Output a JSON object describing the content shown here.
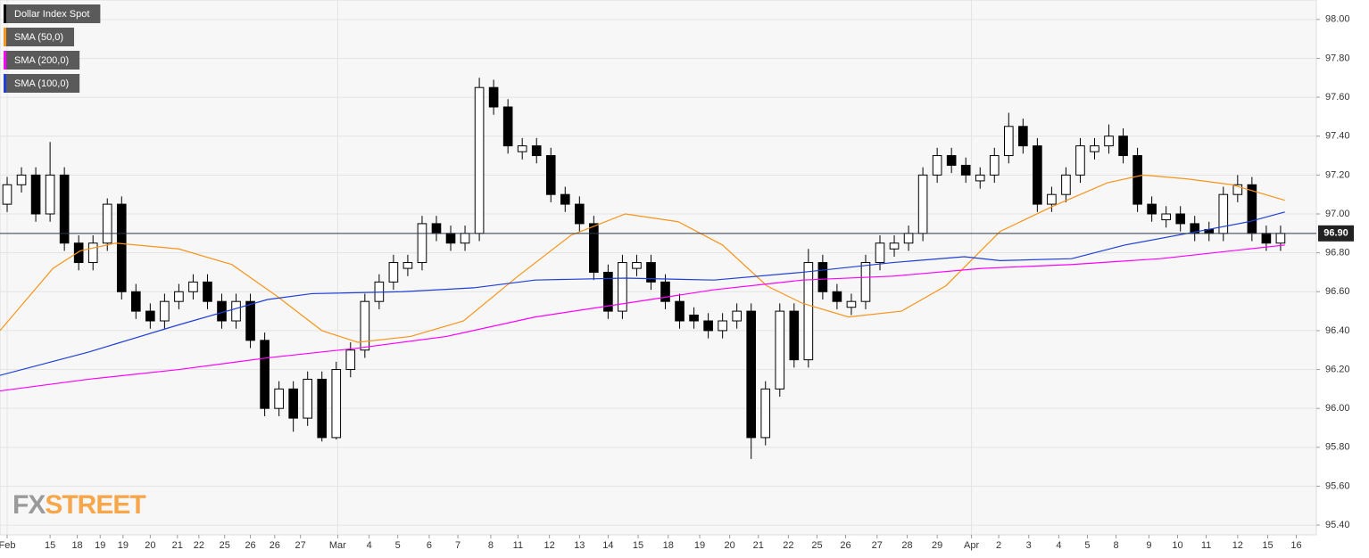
{
  "chart_data": {
    "type": "candlestick",
    "name": "Dollar Index Spot",
    "color": "#000000",
    "up_color": "#ffffff",
    "down_color": "#000000",
    "open": [
      97.05,
      97.15,
      97.2,
      97.0,
      97.2,
      96.85,
      96.75,
      96.85,
      97.05,
      96.6,
      96.5,
      96.45,
      96.55,
      96.6,
      96.65,
      96.55,
      96.45,
      96.55,
      96.35,
      96.0,
      96.1,
      95.95,
      96.15,
      95.85,
      96.2,
      96.3,
      96.55,
      96.65,
      96.72,
      96.75,
      96.95,
      96.9,
      96.85,
      96.9,
      97.65,
      97.55,
      97.32,
      97.35,
      97.3,
      97.1,
      97.05,
      96.95,
      96.7,
      96.5,
      96.72,
      96.75,
      96.65,
      96.55,
      96.48,
      96.45,
      96.4,
      96.45,
      96.5,
      95.85,
      96.1,
      96.5,
      96.25,
      96.75,
      96.6,
      96.52,
      96.55,
      96.75,
      96.82,
      96.85,
      96.9,
      97.2,
      97.3,
      97.25,
      97.17,
      97.2,
      97.3,
      97.45,
      97.35,
      97.05,
      97.1,
      97.2,
      97.32,
      97.35,
      97.4,
      97.3,
      97.05,
      96.97,
      97.0,
      96.95,
      96.92,
      96.9,
      97.1,
      97.15,
      96.9,
      96.85
    ],
    "high": [
      97.19,
      97.24,
      97.24,
      97.37,
      97.24,
      96.89,
      96.89,
      97.08,
      97.09,
      96.64,
      96.54,
      96.59,
      96.64,
      96.69,
      96.69,
      96.59,
      96.59,
      96.59,
      96.39,
      96.14,
      96.14,
      96.19,
      96.19,
      96.24,
      96.34,
      96.59,
      96.69,
      96.79,
      96.79,
      96.99,
      96.99,
      96.94,
      96.94,
      97.7,
      97.69,
      97.59,
      97.39,
      97.39,
      97.34,
      97.14,
      97.09,
      96.99,
      96.74,
      96.79,
      96.79,
      96.79,
      96.69,
      96.59,
      96.52,
      96.49,
      96.49,
      96.54,
      96.54,
      96.14,
      96.54,
      96.54,
      96.82,
      96.79,
      96.64,
      96.59,
      96.79,
      96.89,
      96.89,
      96.94,
      97.24,
      97.34,
      97.34,
      97.29,
      97.24,
      97.34,
      97.52,
      97.49,
      97.39,
      97.14,
      97.24,
      97.39,
      97.39,
      97.46,
      97.44,
      97.34,
      97.09,
      97.04,
      97.04,
      96.99,
      96.96,
      97.14,
      97.2,
      97.19,
      96.94,
      96.94
    ],
    "low": [
      97.01,
      97.11,
      96.96,
      96.96,
      96.81,
      96.71,
      96.71,
      96.81,
      96.56,
      96.46,
      96.41,
      96.41,
      96.51,
      96.56,
      96.51,
      96.41,
      96.41,
      96.31,
      95.96,
      95.96,
      95.88,
      95.91,
      95.83,
      95.84,
      96.16,
      96.26,
      96.51,
      96.61,
      96.68,
      96.71,
      96.86,
      96.81,
      96.81,
      96.86,
      97.51,
      97.31,
      97.28,
      97.26,
      97.06,
      97.01,
      96.91,
      96.66,
      96.46,
      96.46,
      96.68,
      96.61,
      96.51,
      96.41,
      96.41,
      96.36,
      96.36,
      96.41,
      95.74,
      95.81,
      96.06,
      96.21,
      96.21,
      96.56,
      96.51,
      96.48,
      96.51,
      96.71,
      96.78,
      96.81,
      96.86,
      97.16,
      97.21,
      97.16,
      97.13,
      97.16,
      97.26,
      97.31,
      97.01,
      97.01,
      97.06,
      97.16,
      97.28,
      97.31,
      97.26,
      97.01,
      96.96,
      96.93,
      96.91,
      96.86,
      96.86,
      96.86,
      97.06,
      96.86,
      96.81,
      96.81
    ],
    "close": [
      97.15,
      97.2,
      97.0,
      97.2,
      96.85,
      96.75,
      96.85,
      97.05,
      96.6,
      96.5,
      96.45,
      96.55,
      96.6,
      96.65,
      96.55,
      96.45,
      96.55,
      96.35,
      96.0,
      96.1,
      95.95,
      96.15,
      95.85,
      96.2,
      96.3,
      96.55,
      96.65,
      96.75,
      96.75,
      96.95,
      96.9,
      96.85,
      96.9,
      97.65,
      97.55,
      97.35,
      97.35,
      97.3,
      97.1,
      97.05,
      96.95,
      96.7,
      96.5,
      96.75,
      96.75,
      96.65,
      96.55,
      96.45,
      96.45,
      96.4,
      96.45,
      96.5,
      95.85,
      96.1,
      96.5,
      96.25,
      96.75,
      96.6,
      96.55,
      96.55,
      96.75,
      96.85,
      96.85,
      96.9,
      97.2,
      97.3,
      97.25,
      97.2,
      97.2,
      97.3,
      97.45,
      97.35,
      97.05,
      97.1,
      97.2,
      97.35,
      97.35,
      97.4,
      97.3,
      97.05,
      97.0,
      97.0,
      96.95,
      96.9,
      96.9,
      97.1,
      97.15,
      96.9,
      96.85,
      96.9
    ],
    "series": [
      {
        "name": "SMA (50,0)",
        "color": "#f7941d",
        "x": [
          0,
          3.7,
          5.6,
          8.1,
          12.5,
          16.2,
          19.3,
          22.5,
          25,
          28.7,
          32.4,
          36.2,
          39.9,
          43.7,
          47.4,
          50.5,
          53.6,
          56.1,
          59.3,
          63,
          66.1,
          69.9,
          73.6,
          77.4,
          79.9,
          83,
          86.1,
          89.8
        ],
        "values": [
          96.4,
          96.72,
          96.81,
          96.85,
          96.82,
          96.74,
          96.58,
          96.4,
          96.34,
          96.37,
          96.45,
          96.68,
          96.89,
          97.0,
          96.96,
          96.84,
          96.63,
          96.54,
          96.47,
          96.5,
          96.63,
          96.91,
          97.04,
          97.16,
          97.2,
          97.18,
          97.15,
          97.07
        ]
      },
      {
        "name": "SMA (200,0)",
        "color": "#ff00ff",
        "x": [
          0,
          6.2,
          12.5,
          18.7,
          25,
          31.2,
          37.4,
          43.7,
          49.9,
          56.1,
          62.4,
          68.6,
          74.9,
          81.1,
          87.3,
          89.8
        ],
        "values": [
          96.09,
          96.15,
          96.2,
          96.26,
          96.31,
          96.37,
          96.47,
          96.54,
          96.61,
          96.66,
          96.68,
          96.72,
          96.74,
          96.77,
          96.82,
          96.84
        ]
      },
      {
        "name": "SMA (100,0)",
        "color": "#1f3fd6",
        "x": [
          0,
          6.2,
          12.5,
          18.7,
          21.8,
          28.1,
          33.1,
          37.4,
          43.7,
          49.9,
          56.1,
          62.4,
          67.4,
          69.9,
          74.9,
          78.6,
          83,
          87.3,
          89.8
        ],
        "values": [
          96.17,
          96.29,
          96.43,
          96.56,
          96.59,
          96.6,
          96.62,
          96.66,
          96.67,
          96.66,
          96.7,
          96.75,
          96.78,
          96.76,
          96.77,
          96.84,
          96.9,
          96.96,
          97.01
        ]
      }
    ],
    "last_price": {
      "value": 96.9,
      "label": "96.90"
    },
    "xlim": [
      0,
      92
    ],
    "ylim": [
      95.35,
      98.1
    ],
    "yticks": [
      {
        "value": 95.4,
        "label": "95.40"
      },
      {
        "value": 95.6,
        "label": "95.60"
      },
      {
        "value": 95.8,
        "label": "95.80"
      },
      {
        "value": 96.0,
        "label": "96.00"
      },
      {
        "value": 96.2,
        "label": "96.20"
      },
      {
        "value": 96.4,
        "label": "96.40"
      },
      {
        "value": 96.6,
        "label": "96.60"
      },
      {
        "value": 96.8,
        "label": "96.80"
      },
      {
        "value": 97.0,
        "label": "97.00"
      },
      {
        "value": 97.2,
        "label": "97.20"
      },
      {
        "value": 97.4,
        "label": "97.40"
      },
      {
        "value": 97.6,
        "label": "97.60"
      },
      {
        "value": 97.8,
        "label": "97.80"
      },
      {
        "value": 98.0,
        "label": "98.00"
      }
    ],
    "xticks": [
      {
        "value": 0.5,
        "label": "Feb"
      },
      {
        "value": 3.5,
        "label": "15"
      },
      {
        "value": 5.4,
        "label": "18"
      },
      {
        "value": 7.0,
        "label": "19"
      },
      {
        "value": 8.6,
        "label": "19"
      },
      {
        "value": 10.5,
        "label": "20"
      },
      {
        "value": 12.4,
        "label": "21"
      },
      {
        "value": 13.9,
        "label": "22"
      },
      {
        "value": 15.7,
        "label": "25"
      },
      {
        "value": 17.5,
        "label": "26"
      },
      {
        "value": 19.2,
        "label": "26"
      },
      {
        "value": 21.0,
        "label": "27"
      },
      {
        "value": 23.6,
        "label": "Mar"
      },
      {
        "value": 25.8,
        "label": "4"
      },
      {
        "value": 27.8,
        "label": "5"
      },
      {
        "value": 30.0,
        "label": "6"
      },
      {
        "value": 32.0,
        "label": "7"
      },
      {
        "value": 34.3,
        "label": "8"
      },
      {
        "value": 36.2,
        "label": "11"
      },
      {
        "value": 38.4,
        "label": "12"
      },
      {
        "value": 40.5,
        "label": "13"
      },
      {
        "value": 42.5,
        "label": "14"
      },
      {
        "value": 44.6,
        "label": "15"
      },
      {
        "value": 46.7,
        "label": "18"
      },
      {
        "value": 48.9,
        "label": "19"
      },
      {
        "value": 51.0,
        "label": "20"
      },
      {
        "value": 53.0,
        "label": "21"
      },
      {
        "value": 55.1,
        "label": "22"
      },
      {
        "value": 57.1,
        "label": "25"
      },
      {
        "value": 59.1,
        "label": "26"
      },
      {
        "value": 61.3,
        "label": "27"
      },
      {
        "value": 63.4,
        "label": "28"
      },
      {
        "value": 65.5,
        "label": "29"
      },
      {
        "value": 67.9,
        "label": "Apr"
      },
      {
        "value": 69.8,
        "label": "2"
      },
      {
        "value": 71.9,
        "label": "3"
      },
      {
        "value": 74.0,
        "label": "4"
      },
      {
        "value": 76.0,
        "label": "5"
      },
      {
        "value": 78.0,
        "label": "8"
      },
      {
        "value": 80.3,
        "label": "9"
      },
      {
        "value": 82.3,
        "label": "10"
      },
      {
        "value": 84.3,
        "label": "11"
      },
      {
        "value": 86.5,
        "label": "12"
      },
      {
        "value": 88.6,
        "label": "15"
      },
      {
        "value": 90.6,
        "label": "16"
      }
    ],
    "grid": true,
    "legend": "top-left",
    "watermark": [
      "FX",
      "STREET"
    ]
  }
}
